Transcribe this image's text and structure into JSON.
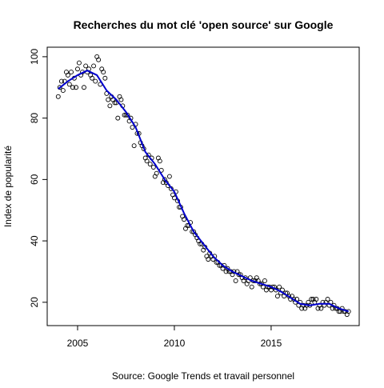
{
  "chart_data": {
    "type": "scatter",
    "title": "Recherches du mot clé 'open source' sur Google",
    "y_label": "Index de popularité",
    "x_label": "Source: Google Trends et travail personnel",
    "xlim": [
      2003.43,
      2019.55
    ],
    "ylim": [
      12.4,
      103.1
    ],
    "xticks": [
      2005,
      2010,
      2015
    ],
    "yticks": [
      20,
      40,
      60,
      80,
      100
    ],
    "series": [
      {
        "style": "points",
        "color": "#000000",
        "x": [
          2004,
          2004.08,
          2004.17,
          2004.25,
          2004.33,
          2004.42,
          2004.5,
          2004.58,
          2004.67,
          2004.75,
          2004.83,
          2004.92,
          2005,
          2005.08,
          2005.17,
          2005.25,
          2005.33,
          2005.42,
          2005.5,
          2005.58,
          2005.67,
          2005.75,
          2005.83,
          2005.92,
          2006,
          2006.08,
          2006.17,
          2006.25,
          2006.33,
          2006.42,
          2006.5,
          2006.58,
          2006.67,
          2006.75,
          2006.83,
          2006.92,
          2007,
          2007.08,
          2007.17,
          2007.25,
          2007.33,
          2007.42,
          2007.5,
          2007.58,
          2007.67,
          2007.75,
          2007.83,
          2007.92,
          2008,
          2008.08,
          2008.17,
          2008.25,
          2008.33,
          2008.42,
          2008.5,
          2008.58,
          2008.67,
          2008.75,
          2008.83,
          2008.92,
          2009,
          2009.08,
          2009.17,
          2009.25,
          2009.33,
          2009.42,
          2009.5,
          2009.58,
          2009.67,
          2009.75,
          2009.83,
          2009.92,
          2010,
          2010.08,
          2010.17,
          2010.25,
          2010.33,
          2010.42,
          2010.5,
          2010.58,
          2010.67,
          2010.75,
          2010.83,
          2010.92,
          2011,
          2011.08,
          2011.17,
          2011.25,
          2011.33,
          2011.42,
          2011.5,
          2011.58,
          2011.67,
          2011.75,
          2011.83,
          2011.92,
          2012,
          2012.08,
          2012.17,
          2012.25,
          2012.33,
          2012.42,
          2012.5,
          2012.58,
          2012.67,
          2012.75,
          2012.83,
          2012.92,
          2013,
          2013.08,
          2013.17,
          2013.25,
          2013.33,
          2013.42,
          2013.5,
          2013.58,
          2013.67,
          2013.75,
          2013.83,
          2013.92,
          2014,
          2014.08,
          2014.17,
          2014.25,
          2014.33,
          2014.42,
          2014.5,
          2014.58,
          2014.67,
          2014.75,
          2014.83,
          2014.92,
          2015,
          2015.08,
          2015.17,
          2015.25,
          2015.33,
          2015.42,
          2015.5,
          2015.58,
          2015.67,
          2015.75,
          2015.83,
          2015.92,
          2016,
          2016.08,
          2016.17,
          2016.25,
          2016.33,
          2016.42,
          2016.5,
          2016.58,
          2016.67,
          2016.75,
          2016.83,
          2016.92,
          2017,
          2017.08,
          2017.17,
          2017.25,
          2017.33,
          2017.42,
          2017.5,
          2017.58,
          2017.67,
          2017.75,
          2017.83,
          2017.92,
          2018,
          2018.08,
          2018.17,
          2018.25,
          2018.33,
          2018.42,
          2018.5,
          2018.58,
          2018.67,
          2018.75,
          2018.83,
          2018.92,
          2019
        ],
        "values": [
          87,
          90,
          92,
          89,
          92,
          95,
          94,
          91,
          95,
          90,
          93,
          90,
          96,
          98,
          94,
          95,
          90,
          97,
          95,
          96,
          94,
          93,
          97,
          92,
          100,
          99,
          91,
          96,
          95,
          93,
          88,
          86,
          84,
          87,
          86,
          85,
          85,
          80,
          87,
          86,
          84,
          81,
          81,
          81,
          79,
          80,
          77,
          71,
          78,
          75,
          75,
          72,
          71,
          70,
          67,
          66,
          68,
          65,
          67,
          64,
          61,
          62,
          67,
          66,
          63,
          59,
          60,
          59,
          58,
          61,
          57,
          55,
          54,
          56,
          53,
          51,
          51,
          48,
          47,
          44,
          45,
          45,
          46,
          43,
          43,
          42,
          41,
          40,
          39,
          39,
          37,
          38,
          35,
          34,
          36,
          35,
          34,
          35,
          33,
          33,
          32,
          32,
          31,
          32,
          30,
          31,
          30,
          30,
          29,
          30,
          27,
          30,
          29,
          29,
          28,
          27,
          28,
          26,
          27,
          28,
          25,
          27,
          27,
          28,
          27,
          26,
          26,
          25,
          27,
          24,
          25,
          25,
          24,
          25,
          25,
          24,
          22,
          25,
          23,
          24,
          22,
          23,
          23,
          22,
          21,
          22,
          21,
          20,
          21,
          19,
          20,
          18,
          19,
          18,
          19,
          20,
          19,
          21,
          21,
          20,
          21,
          18,
          19,
          18,
          20,
          19,
          20,
          21,
          19,
          20,
          18,
          19,
          18,
          18,
          17,
          17,
          18,
          17,
          17,
          16,
          17
        ]
      },
      {
        "style": "line",
        "color": "#0000cd",
        "x": [
          2004,
          2004.5,
          2005,
          2005.5,
          2006,
          2006.5,
          2007,
          2007.5,
          2008,
          2008.5,
          2009,
          2009.5,
          2010,
          2010.5,
          2011,
          2011.5,
          2012,
          2012.5,
          2013,
          2013.5,
          2014,
          2014.5,
          2015,
          2015.5,
          2016,
          2016.5,
          2017,
          2017.5,
          2018,
          2018.5,
          2019
        ],
        "values": [
          89.5,
          92,
          94,
          95.5,
          94,
          89,
          86,
          82,
          77,
          69,
          65,
          60,
          56,
          49,
          43,
          39,
          35,
          32,
          30,
          28.5,
          27,
          26,
          25,
          23.5,
          21.5,
          19.5,
          19,
          19.5,
          19.5,
          18,
          17
        ]
      }
    ]
  }
}
